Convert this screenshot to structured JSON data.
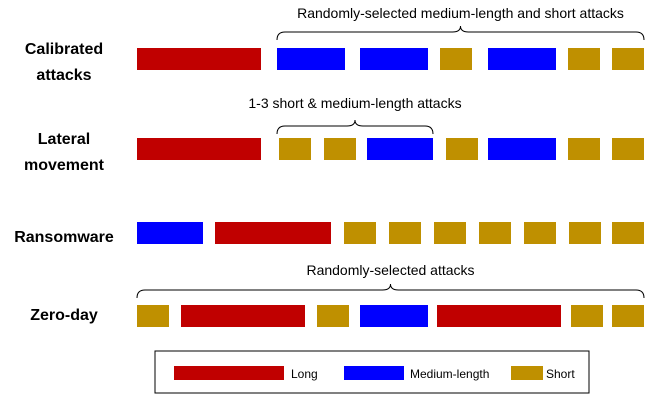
{
  "colors": {
    "long": "#C00000",
    "medium": "#0000FF",
    "short": "#BF9000"
  },
  "rows": [
    {
      "id": "calibrated",
      "label_lines": [
        "Calibrated",
        "attacks"
      ],
      "blocks": [
        "long",
        "medium",
        "medium",
        "short",
        "medium",
        "short",
        "short"
      ],
      "bracket_label": "Randomly-selected medium-length and short attacks"
    },
    {
      "id": "lateral",
      "label_lines": [
        "Lateral",
        "movement"
      ],
      "blocks": [
        "long",
        "short",
        "short",
        "medium",
        "short",
        "medium",
        "short",
        "short"
      ],
      "bracket_label": "1-3 short & medium-length attacks"
    },
    {
      "id": "ransomware",
      "label_lines": [
        "Ransomware"
      ],
      "blocks": [
        "medium",
        "long",
        "short",
        "short",
        "short",
        "short",
        "short",
        "short",
        "short"
      ],
      "bracket_label": ""
    },
    {
      "id": "zeroday",
      "label_lines": [
        "Zero-day"
      ],
      "blocks": [
        "short",
        "long",
        "short",
        "medium",
        "long",
        "short",
        "short"
      ],
      "bracket_label": "Randomly-selected attacks"
    }
  ],
  "legend": [
    {
      "key": "long",
      "label": "Long"
    },
    {
      "key": "medium",
      "label": "Medium-length"
    },
    {
      "key": "short",
      "label": "Short"
    }
  ]
}
